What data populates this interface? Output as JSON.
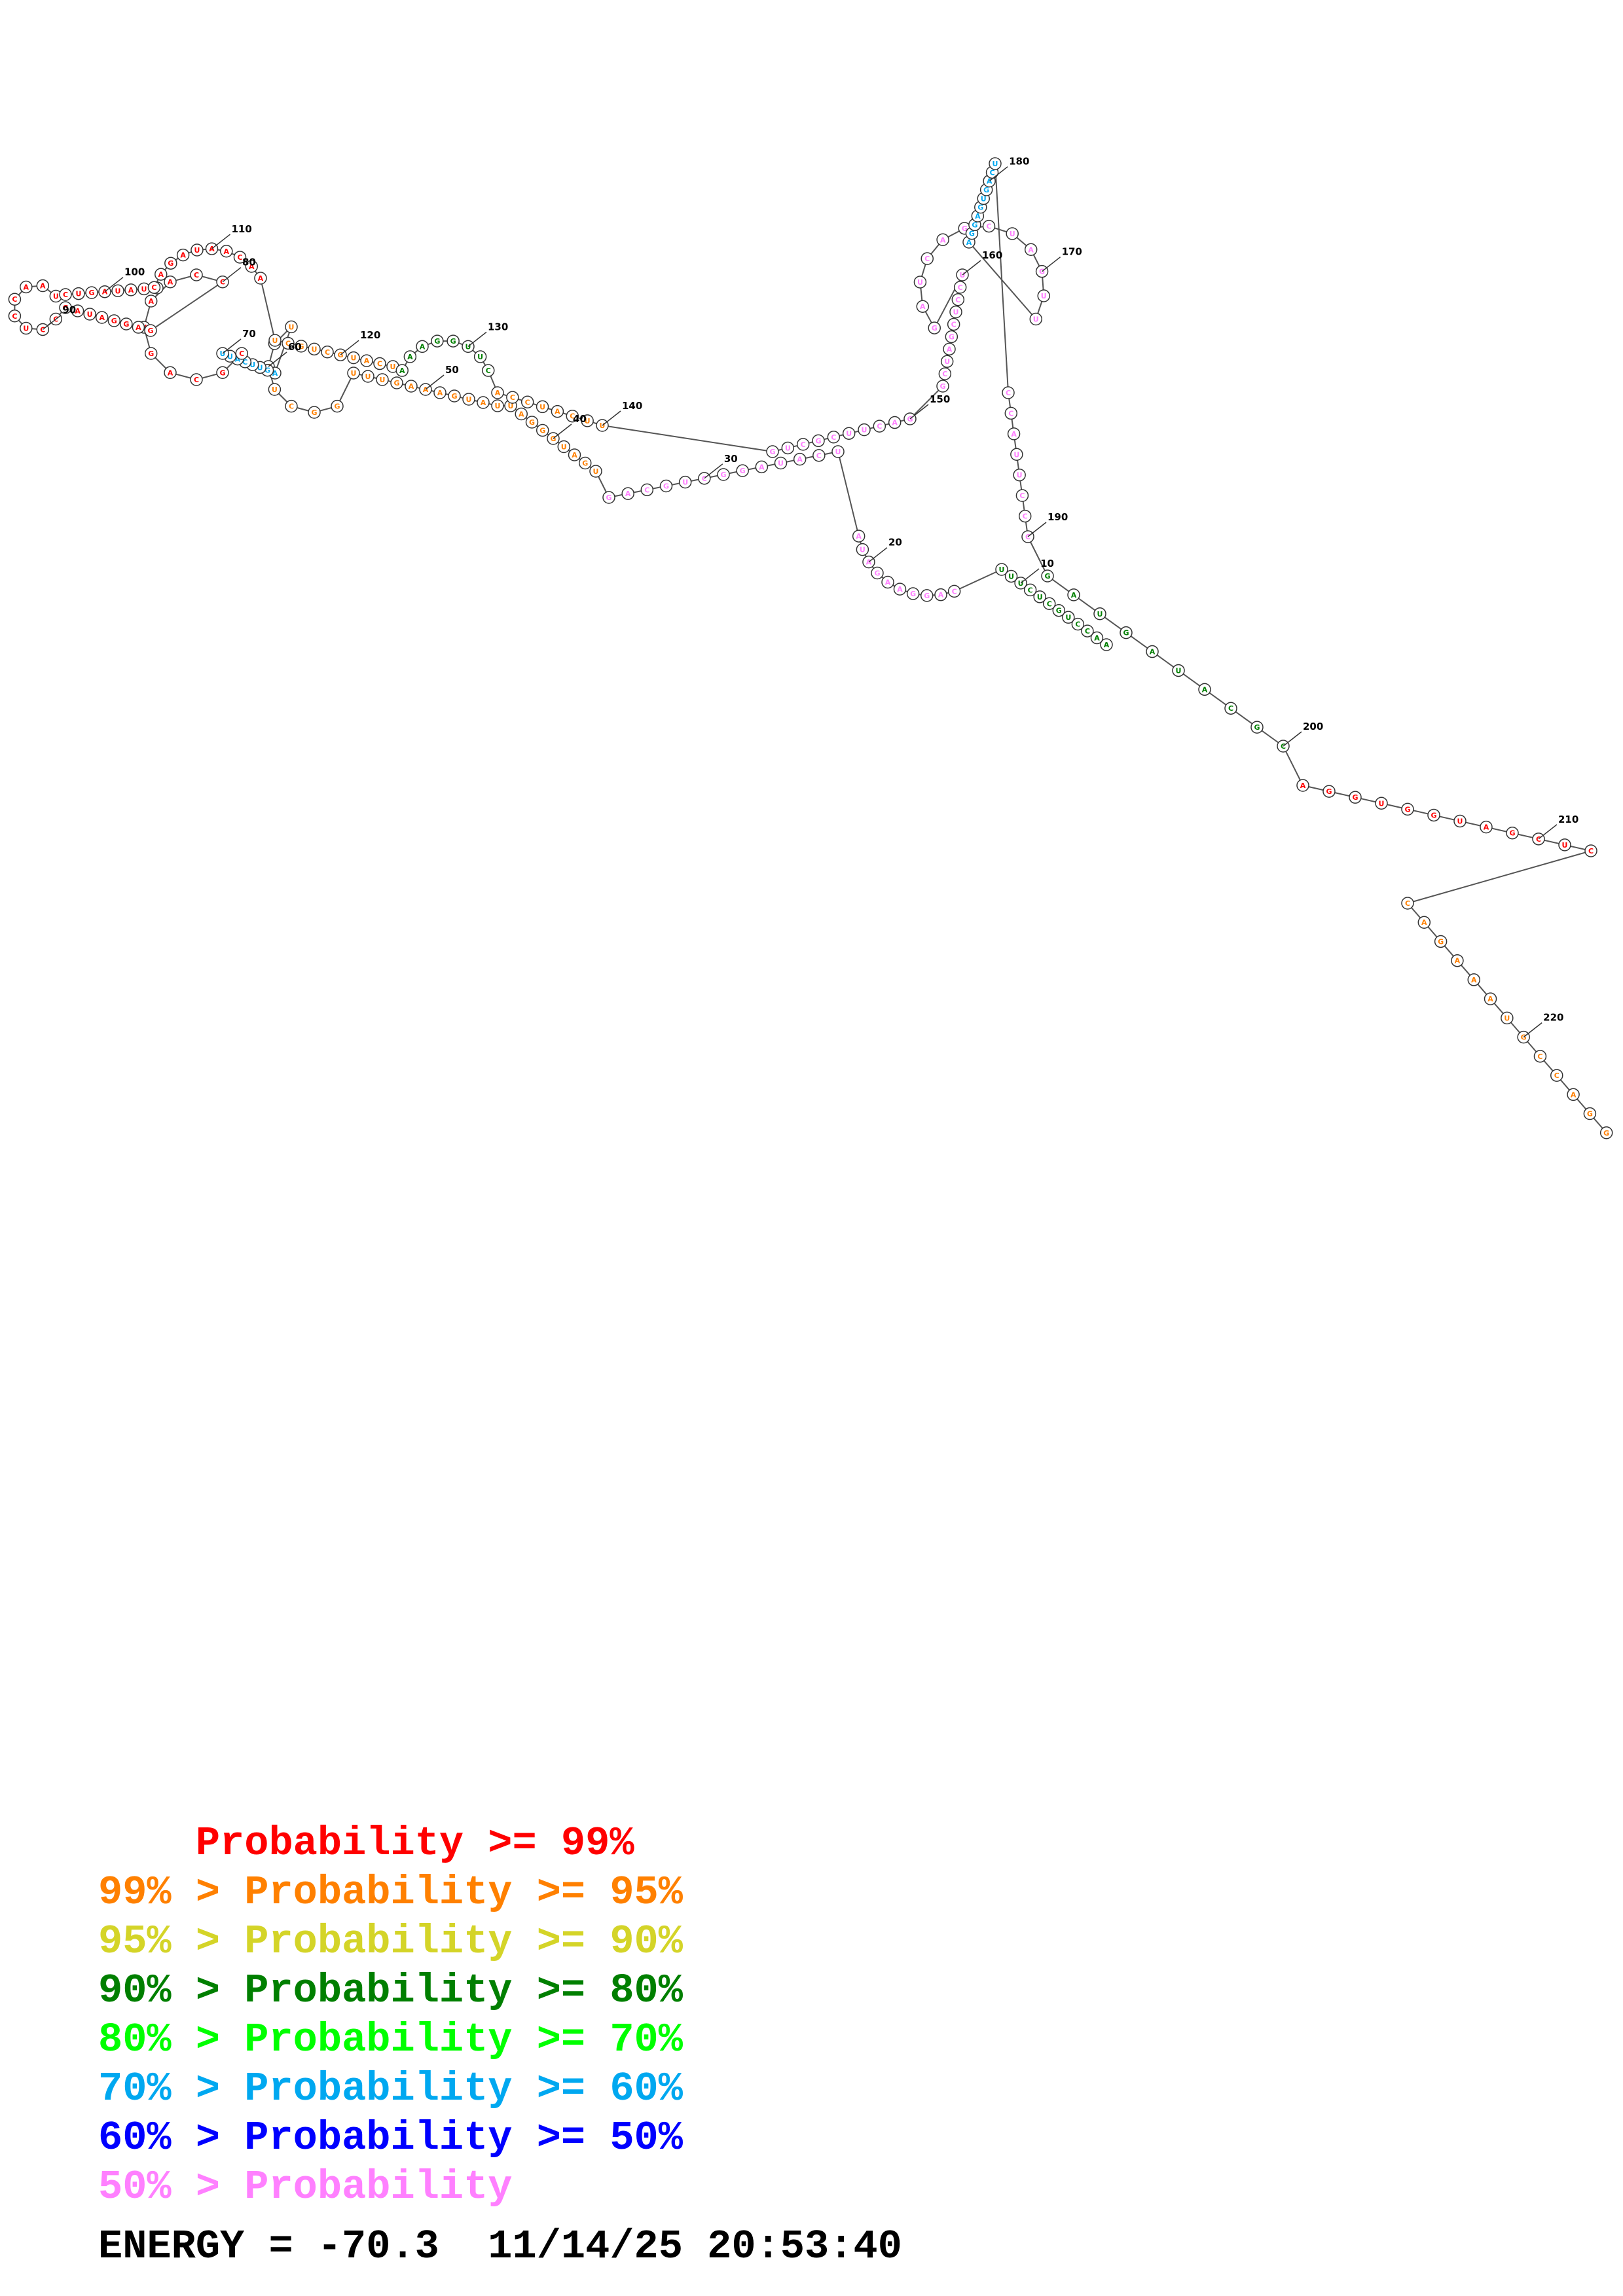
{
  "diagram": {
    "bases": "AACCUGCUCUUUCAGGAAGAUAUCAUAGGCUGCAGUGAUGGGAUUAUGAAAGUUUGGCUCAUAGUUCAUUCGCAGUAACCGAGGAUAGCCUCCAAUCUGAUAUUCAGAUAACAAUCGUCGUACUAAAGGUUCACCUACUUGUCGCUUCAGGCUAGCUCCUGAUCAGCUAGUUAGGAGUGACUCCAUUCCCGAUGAUACGCAGGUGGUAGCUCCAGAAAUGCCAGG",
    "position_labels": [
      "10",
      "20",
      "30",
      "40",
      "50",
      "60",
      "70",
      "80",
      "90",
      "100",
      "110",
      "120",
      "130",
      "140",
      "150",
      "160",
      "170",
      "180",
      "190",
      "200",
      "210",
      "220"
    ],
    "colors": {
      "p99": "#ff0000",
      "p95": "#ff8000",
      "p90": "#d4d428",
      "p80": "#007f00",
      "p70": "#00ff00",
      "p60": "#00a8f0",
      "p50": "#0000ff",
      "p0": "#ff80ff"
    }
  },
  "legend": [
    {
      "prefix": "    ",
      "text": "Probability >= 99%",
      "color": "#ff0000"
    },
    {
      "prefix": "99% > ",
      "text": "Probability >= 95%",
      "color": "#ff8000"
    },
    {
      "prefix": "95% > ",
      "text": "Probability >= 90%",
      "color": "#d4d428"
    },
    {
      "prefix": "90% > ",
      "text": "Probability >= 80%",
      "color": "#007f00"
    },
    {
      "prefix": "80% > ",
      "text": "Probability >= 70%",
      "color": "#00ff00"
    },
    {
      "prefix": "70% > ",
      "text": "Probability >= 60%",
      "color": "#00a8f0"
    },
    {
      "prefix": "60% > ",
      "text": "Probability >= 50%",
      "color": "#0000ff"
    },
    {
      "prefix": "50% > ",
      "text": "Probability",
      "color": "#ff80ff"
    }
  ],
  "energy": {
    "text": "ENERGY = -70.3  11/14/25 20:53:40"
  }
}
